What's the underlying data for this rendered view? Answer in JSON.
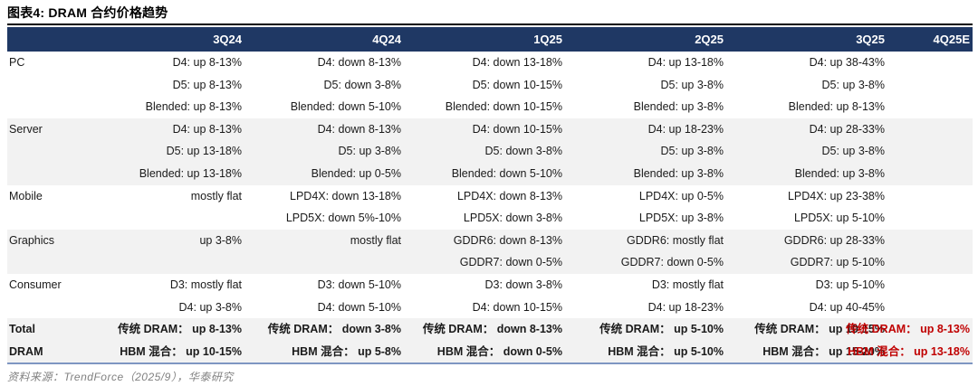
{
  "title": "图表4:  DRAM 合约价格趋势",
  "header": {
    "columns": [
      "3Q24",
      "4Q24",
      "1Q25",
      "2Q25",
      "3Q25",
      "4Q25E"
    ]
  },
  "sections": [
    {
      "label": "PC",
      "shaded": false,
      "cells": [
        [
          "D4: up 8-13%",
          "D5: up 8-13%",
          "Blended: up 8-13%"
        ],
        [
          "D4: down 8-13%",
          "D5: down 3-8%",
          "Blended: down 5-10%"
        ],
        [
          "D4: down 13-18%",
          "D5: down 10-15%",
          "Blended: down 10-15%"
        ],
        [
          "D4: up 13-18%",
          "D5: up 3-8%",
          "Blended: up 3-8%"
        ],
        [
          "D4: up 38-43%",
          "D5: up 3-8%",
          "Blended: up 8-13%"
        ],
        []
      ]
    },
    {
      "label": "Server",
      "shaded": true,
      "cells": [
        [
          "D4: up 8-13%",
          "D5: up 13-18%",
          "Blended: up 13-18%"
        ],
        [
          "D4: down 8-13%",
          "D5: up 3-8%",
          "Blended: up 0-5%"
        ],
        [
          "D4: down 10-15%",
          "D5: down 3-8%",
          "Blended: down 5-10%"
        ],
        [
          "D4: up 18-23%",
          "D5: up 3-8%",
          "Blended: up 3-8%"
        ],
        [
          "D4: up 28-33%",
          "D5: up 3-8%",
          "Blended: up 3-8%"
        ],
        []
      ]
    },
    {
      "label": "Mobile",
      "shaded": false,
      "cells": [
        [
          "mostly flat"
        ],
        [
          "LPD4X: down 13-18%",
          "LPD5X: down 5%-10%"
        ],
        [
          "LPD4X: down 8-13%",
          "LPD5X: down 3-8%"
        ],
        [
          "LPD4X: up 0-5%",
          "LPD5X: up 3-8%"
        ],
        [
          "LPD4X: up 23-38%",
          "LPD5X: up 5-10%"
        ],
        []
      ]
    },
    {
      "label": "Graphics",
      "shaded": true,
      "cells": [
        [
          "up 3-8%"
        ],
        [
          "mostly flat"
        ],
        [
          "GDDR6: down 8-13%",
          "GDDR7: down 0-5%"
        ],
        [
          "GDDR6: mostly flat",
          "GDDR7: down 0-5%"
        ],
        [
          "GDDR6: up 28-33%",
          "GDDR7: up 5-10%"
        ],
        []
      ]
    },
    {
      "label": "Consumer",
      "shaded": false,
      "cells": [
        [
          "D3: mostly flat",
          "D4: up 3-8%"
        ],
        [
          "D3: down 5-10%",
          "D4: down 5-10%"
        ],
        [
          "D3: down 3-8%",
          "D4: down 10-15%"
        ],
        [
          "D3: mostly flat",
          "D4: up 18-23%"
        ],
        [
          "D3: up 5-10%",
          "D4: up 40-45%"
        ],
        []
      ]
    }
  ],
  "total": {
    "label_lines": [
      "Total",
      "DRAM"
    ],
    "shaded": true,
    "highlight_columns": [
      5
    ],
    "cells": [
      [
        "传统 DRAM：  up 8-13%",
        "HBM 混合：  up 10-15%"
      ],
      [
        "传统 DRAM：  down 3-8%",
        "HBM 混合：  up 5-8%"
      ],
      [
        "传统 DRAM：  down 8-13%",
        "HBM 混合：  down 0-5%"
      ],
      [
        "传统 DRAM：  up 5-10%",
        "HBM 混合：  up 5-10%"
      ],
      [
        "传统 DRAM：  up 10-15%",
        "HBM 混合：  up 15-20%"
      ],
      [
        "传统 DRAM：  up 8-13%",
        "HBM 混合：  up 13-18%"
      ]
    ]
  },
  "footer": "资料来源：TrendForce（2025/9），华泰研究",
  "colors": {
    "header_bg": "#1F3864",
    "header_text": "#FFFFFF",
    "row_shade": "#F2F2F2",
    "body_text": "#1A1A1A",
    "highlight": "#C00000",
    "bottom_rule": "#7E96C2",
    "footer_text": "#808080",
    "title_rule": "#000000"
  }
}
